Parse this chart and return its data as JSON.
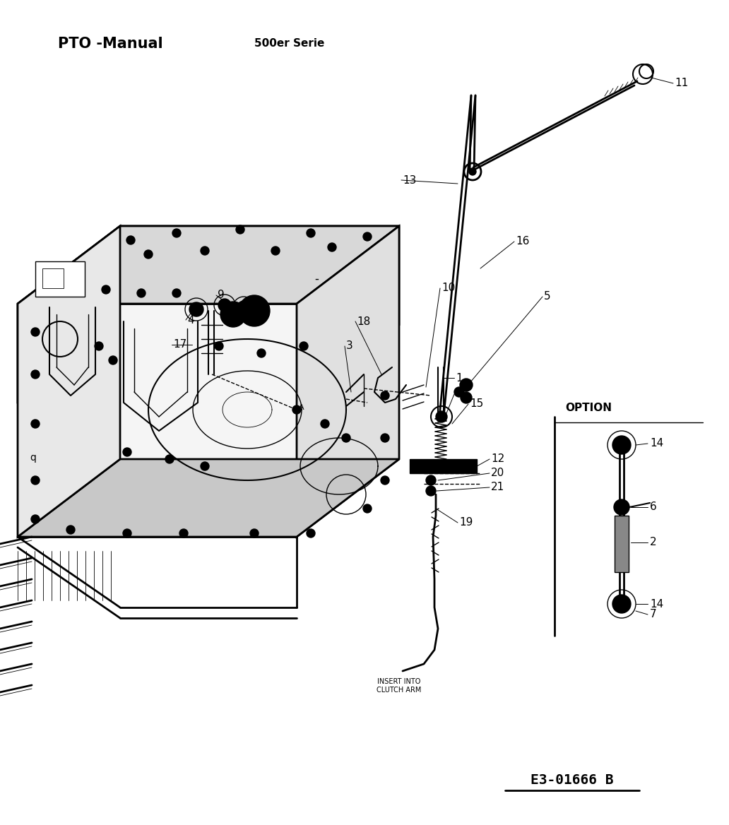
{
  "title_left": "PTO -Manual",
  "title_center": "500er Serie",
  "diagram_id": "E3-01666 B",
  "bg_color": "#ffffff",
  "ink_color": "#000000",
  "fig_width": 10.32,
  "fig_height": 11.68,
  "dpi": 100,
  "option_label": "OPTION",
  "insert_label": "INSERT INTO\nCLUTCH ARM"
}
